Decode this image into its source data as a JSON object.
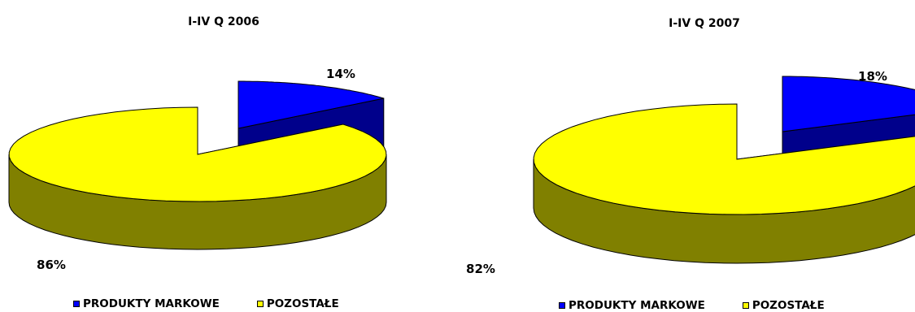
{
  "colors": {
    "produkty_top": "#0000FF",
    "produkty_side": "#00008B",
    "pozostale_top": "#FFFF00",
    "pozostale_side": "#808000",
    "outline": "#000000"
  },
  "chart_data": [
    {
      "type": "pie",
      "style": "3d-exploded",
      "title": "I-IV Q 2006",
      "categories": [
        "PRODUKTY MARKOWE",
        "POZOSTAŁE"
      ],
      "values": [
        14,
        86
      ],
      "labels": [
        "14%",
        "86%"
      ],
      "legend": "bottom"
    },
    {
      "type": "pie",
      "style": "3d-exploded",
      "title": "I-IV Q 2007",
      "categories": [
        "PRODUKTY MARKOWE",
        "POZOSTAŁE"
      ],
      "values": [
        18,
        82
      ],
      "labels": [
        "18%",
        "82%"
      ],
      "legend": "bottom"
    }
  ]
}
